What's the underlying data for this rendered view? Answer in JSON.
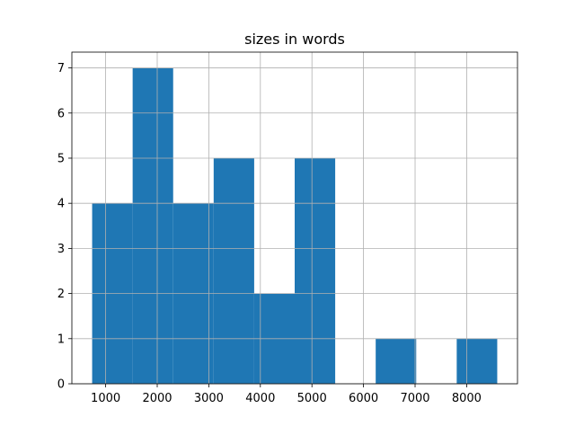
{
  "chart_data": {
    "type": "histogram",
    "title": "sizes in words",
    "bins": [
      738,
      1523.5,
      2309,
      3094.5,
      3880,
      4665.5,
      5451,
      6236.5,
      7022,
      7807.5,
      8593
    ],
    "values": [
      4,
      7,
      4,
      5,
      2,
      5,
      0,
      1,
      0,
      1
    ],
    "color": "#1f77b4",
    "xlim": [
      345,
      8986
    ],
    "xticks": [
      1000,
      2000,
      3000,
      4000,
      5000,
      6000,
      7000,
      8000
    ],
    "ylim": [
      0,
      7.35
    ],
    "yticks": [
      0,
      1,
      2,
      3,
      4,
      5,
      6,
      7
    ],
    "grid": true
  }
}
